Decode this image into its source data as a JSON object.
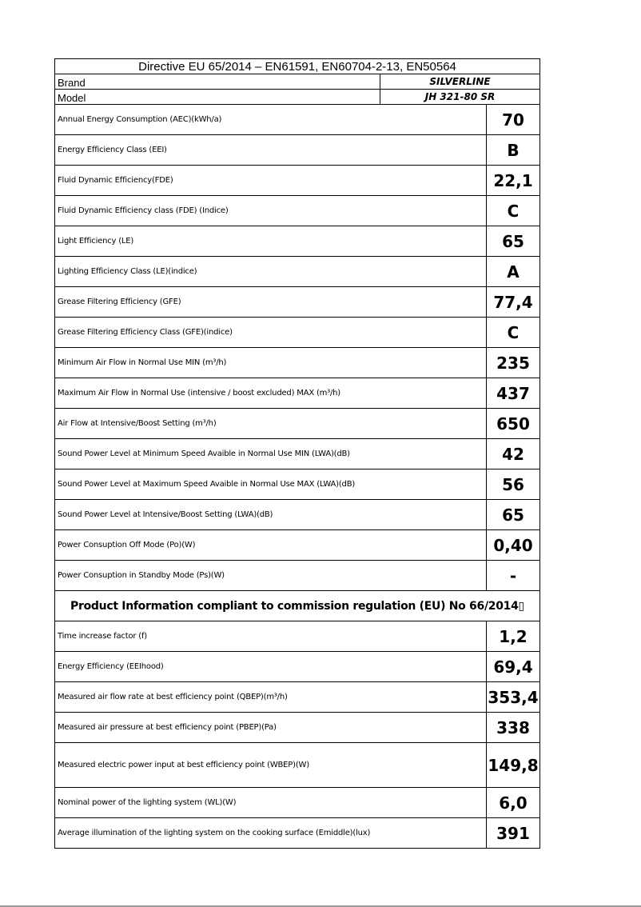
{
  "title": "Directive EU 65/2014 – EN61591, EN60704-2-13, EN50564",
  "brand": {
    "label": "Brand",
    "value": "SILVERLINE"
  },
  "model": {
    "label": "Model",
    "value": "JH 321-80 SR"
  },
  "rows1": [
    {
      "label": "Annual Energy Consumption (AEC)(kWh/a)",
      "value": "70"
    },
    {
      "label": "Energy Efficiency Class (EEI)",
      "value": "B"
    },
    {
      "label": "Fluid Dynamic Efficiency(FDE)",
      "value": "22,1"
    },
    {
      "label": "Fluid Dynamic Efficiency class (FDE) (Indice)",
      "value": "C"
    },
    {
      "label": "Light Efficiency (LE)",
      "value": "65"
    },
    {
      "label": "Lighting Efficiency Class (LE)(indice)",
      "value": "A"
    },
    {
      "label": "Grease Filtering Efficiency (GFE)",
      "value": "77,4"
    },
    {
      "label": "Grease Filtering Efficiency Class (GFE)(indice)",
      "value": "C"
    },
    {
      "label": "Minimum Air Flow in Normal Use MIN (m³/h)",
      "value": "235"
    },
    {
      "label": "Maximum Air Flow in Normal Use  (intensive / boost excluded) MAX (m³/h)",
      "value": "437"
    },
    {
      "label": "Air Flow at Intensive/Boost Setting (m³/h)",
      "value": "650"
    },
    {
      "label": "Sound Power Level at Minimum Speed Avaible in Normal Use MIN (LWA)(dB)",
      "value": "42"
    },
    {
      "label": "Sound Power Level at Maximum Speed Avaible in Normal Use MAX (LWA)(dB)",
      "value": "56"
    },
    {
      "label": "Sound Power Level at Intensive/Boost Setting (LWA)(dB)",
      "value": "65"
    },
    {
      "label": "Power Consuption Off Mode  (Po)(W)",
      "value": "0,40"
    },
    {
      "label": "Power Consuption in Standby Mode (Ps)(W)",
      "value": "-"
    }
  ],
  "section_title": "Product Information compliant to commission regulation (EU) No 66/2014▯",
  "rows2": [
    {
      "label": "Time increase factor (f)",
      "value": "1,2"
    },
    {
      "label": "Energy Efficiency (EEIhood)",
      "value": "69,4"
    },
    {
      "label": "Measured air flow rate at best efficiency point (QBEP)(m³/h)",
      "value": "353,4"
    },
    {
      "label": "Measured air pressure at best efficiency point (PBEP)(Pa)",
      "value": "338"
    },
    {
      "label": "Measured electric power input at best efficiency point (WBEP)(W)",
      "value": "149,8",
      "tall": true
    },
    {
      "label": "Nominal power of the lighting system (WL)(W)",
      "value": "6,0"
    },
    {
      "label": "Average illumination of the lighting system on the cooking surface (Emiddle)(lux)",
      "value": "391"
    }
  ]
}
